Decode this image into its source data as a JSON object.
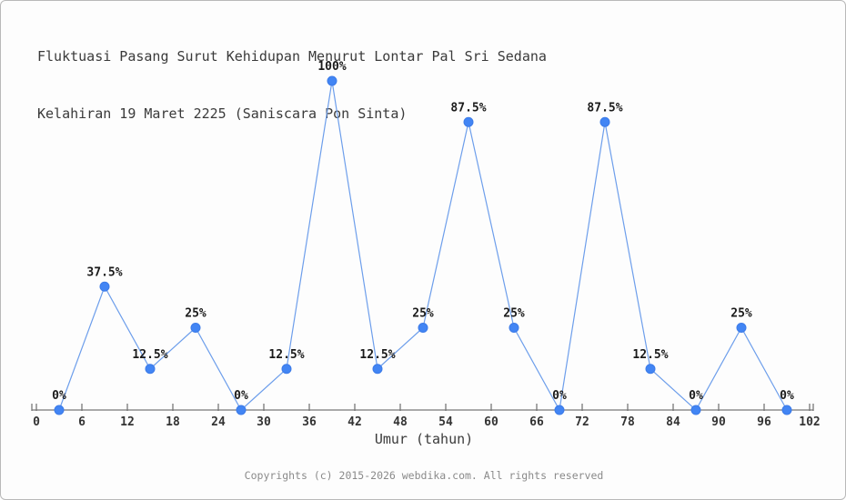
{
  "title": {
    "line1": "Fluktuasi Pasang Surut Kehidupan Menurut Lontar Pal Sri Sedana",
    "line2": "Kelahiran 19 Maret 2225 (Saniscara Pon Sinta)"
  },
  "chart_data": {
    "type": "line",
    "x": [
      3,
      9,
      15,
      21,
      27,
      33,
      39,
      45,
      51,
      57,
      63,
      69,
      75,
      81,
      87,
      93,
      99
    ],
    "values": [
      0,
      37.5,
      12.5,
      25,
      0,
      12.5,
      100,
      12.5,
      25,
      87.5,
      25,
      0,
      87.5,
      12.5,
      0,
      25,
      0
    ],
    "point_labels": [
      "0%",
      "37.5%",
      "12.5%",
      "25%",
      "0%",
      "12.5%",
      "100%",
      "12.5%",
      "25%",
      "87.5%",
      "25%",
      "0%",
      "87.5%",
      "12.5%",
      "0%",
      "25%",
      "0%"
    ],
    "x_ticks": [
      0,
      6,
      12,
      18,
      24,
      30,
      36,
      42,
      48,
      54,
      60,
      66,
      72,
      78,
      84,
      90,
      96,
      102
    ],
    "xlabel": "Umur (tahun)",
    "xlim": [
      0,
      102
    ],
    "ylim": [
      0,
      100
    ],
    "grid": false,
    "legend": "none",
    "colors": {
      "line": "#6d9eeb",
      "marker": "#4285f4",
      "marker_edge": "#3c7be8",
      "axis": "#777777",
      "tick_label": "#333333",
      "point_label": "#1a1a1a"
    }
  },
  "footer": {
    "copyright": "Copyrights (c) 2015-2026 webdika.com. All rights reserved"
  }
}
